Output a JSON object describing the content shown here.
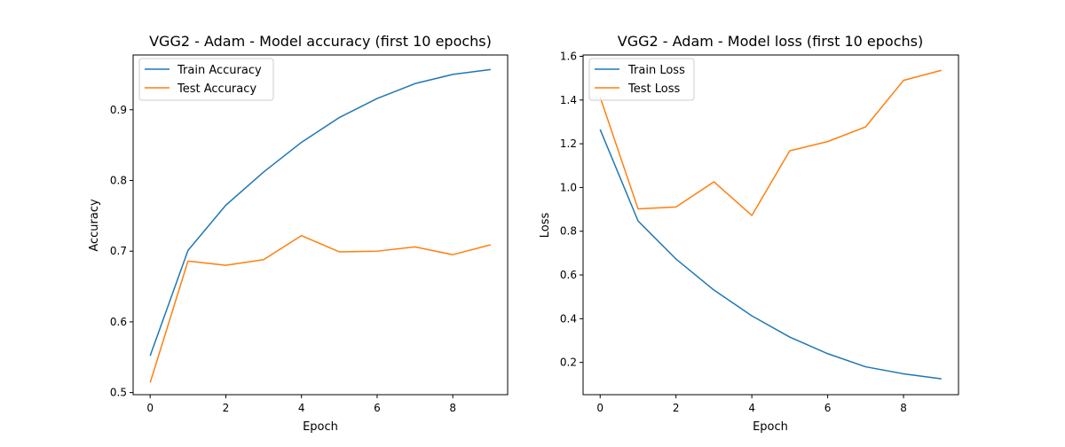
{
  "chart_data": [
    {
      "type": "line",
      "title": "VGG2 - Adam - Model accuracy (first 10 epochs)",
      "xlabel": "Epoch",
      "ylabel": "Accuracy",
      "x": [
        0,
        1,
        2,
        3,
        4,
        5,
        6,
        7,
        8,
        9
      ],
      "xlim": [
        -0.45,
        9.45
      ],
      "ylim": [
        0.497,
        0.9775
      ],
      "xticks": [
        0,
        2,
        4,
        6,
        8
      ],
      "yticks": [
        0.5,
        0.6,
        0.7,
        0.8,
        0.9
      ],
      "ytick_labels": [
        "0.5",
        "0.6",
        "0.7",
        "0.8",
        "0.9"
      ],
      "grid": false,
      "legend_position": "upper left",
      "series": [
        {
          "name": "Train Accuracy",
          "color": "#1f77b4",
          "values": [
            0.552,
            0.701,
            0.765,
            0.812,
            0.854,
            0.889,
            0.916,
            0.937,
            0.95,
            0.957
          ]
        },
        {
          "name": "Test Accuracy",
          "color": "#ff7f0e",
          "values": [
            0.514,
            0.686,
            0.68,
            0.688,
            0.722,
            0.699,
            0.7,
            0.706,
            0.695,
            0.709
          ]
        }
      ]
    },
    {
      "type": "line",
      "title": "VGG2 - Adam - Model loss (first 10 epochs)",
      "xlabel": "Epoch",
      "ylabel": "Loss",
      "x": [
        0,
        1,
        2,
        3,
        4,
        5,
        6,
        7,
        8,
        9
      ],
      "xlim": [
        -0.45,
        9.45
      ],
      "ylim": [
        0.0525,
        1.606
      ],
      "xticks": [
        0,
        2,
        4,
        6,
        8
      ],
      "yticks": [
        0.2,
        0.4,
        0.6,
        0.8,
        1.0,
        1.2,
        1.4,
        1.6
      ],
      "ytick_labels": [
        "0.2",
        "0.4",
        "0.6",
        "0.8",
        "1.0",
        "1.2",
        "1.4",
        "1.6"
      ],
      "grid": false,
      "legend_position": "upper left",
      "series": [
        {
          "name": "Train Loss",
          "color": "#1f77b4",
          "values": [
            1.265,
            0.847,
            0.673,
            0.531,
            0.413,
            0.316,
            0.24,
            0.18,
            0.148,
            0.125
          ]
        },
        {
          "name": "Test Loss",
          "color": "#ff7f0e",
          "values": [
            1.413,
            0.902,
            0.911,
            1.026,
            0.872,
            1.168,
            1.21,
            1.277,
            1.49,
            1.536
          ]
        }
      ]
    }
  ]
}
